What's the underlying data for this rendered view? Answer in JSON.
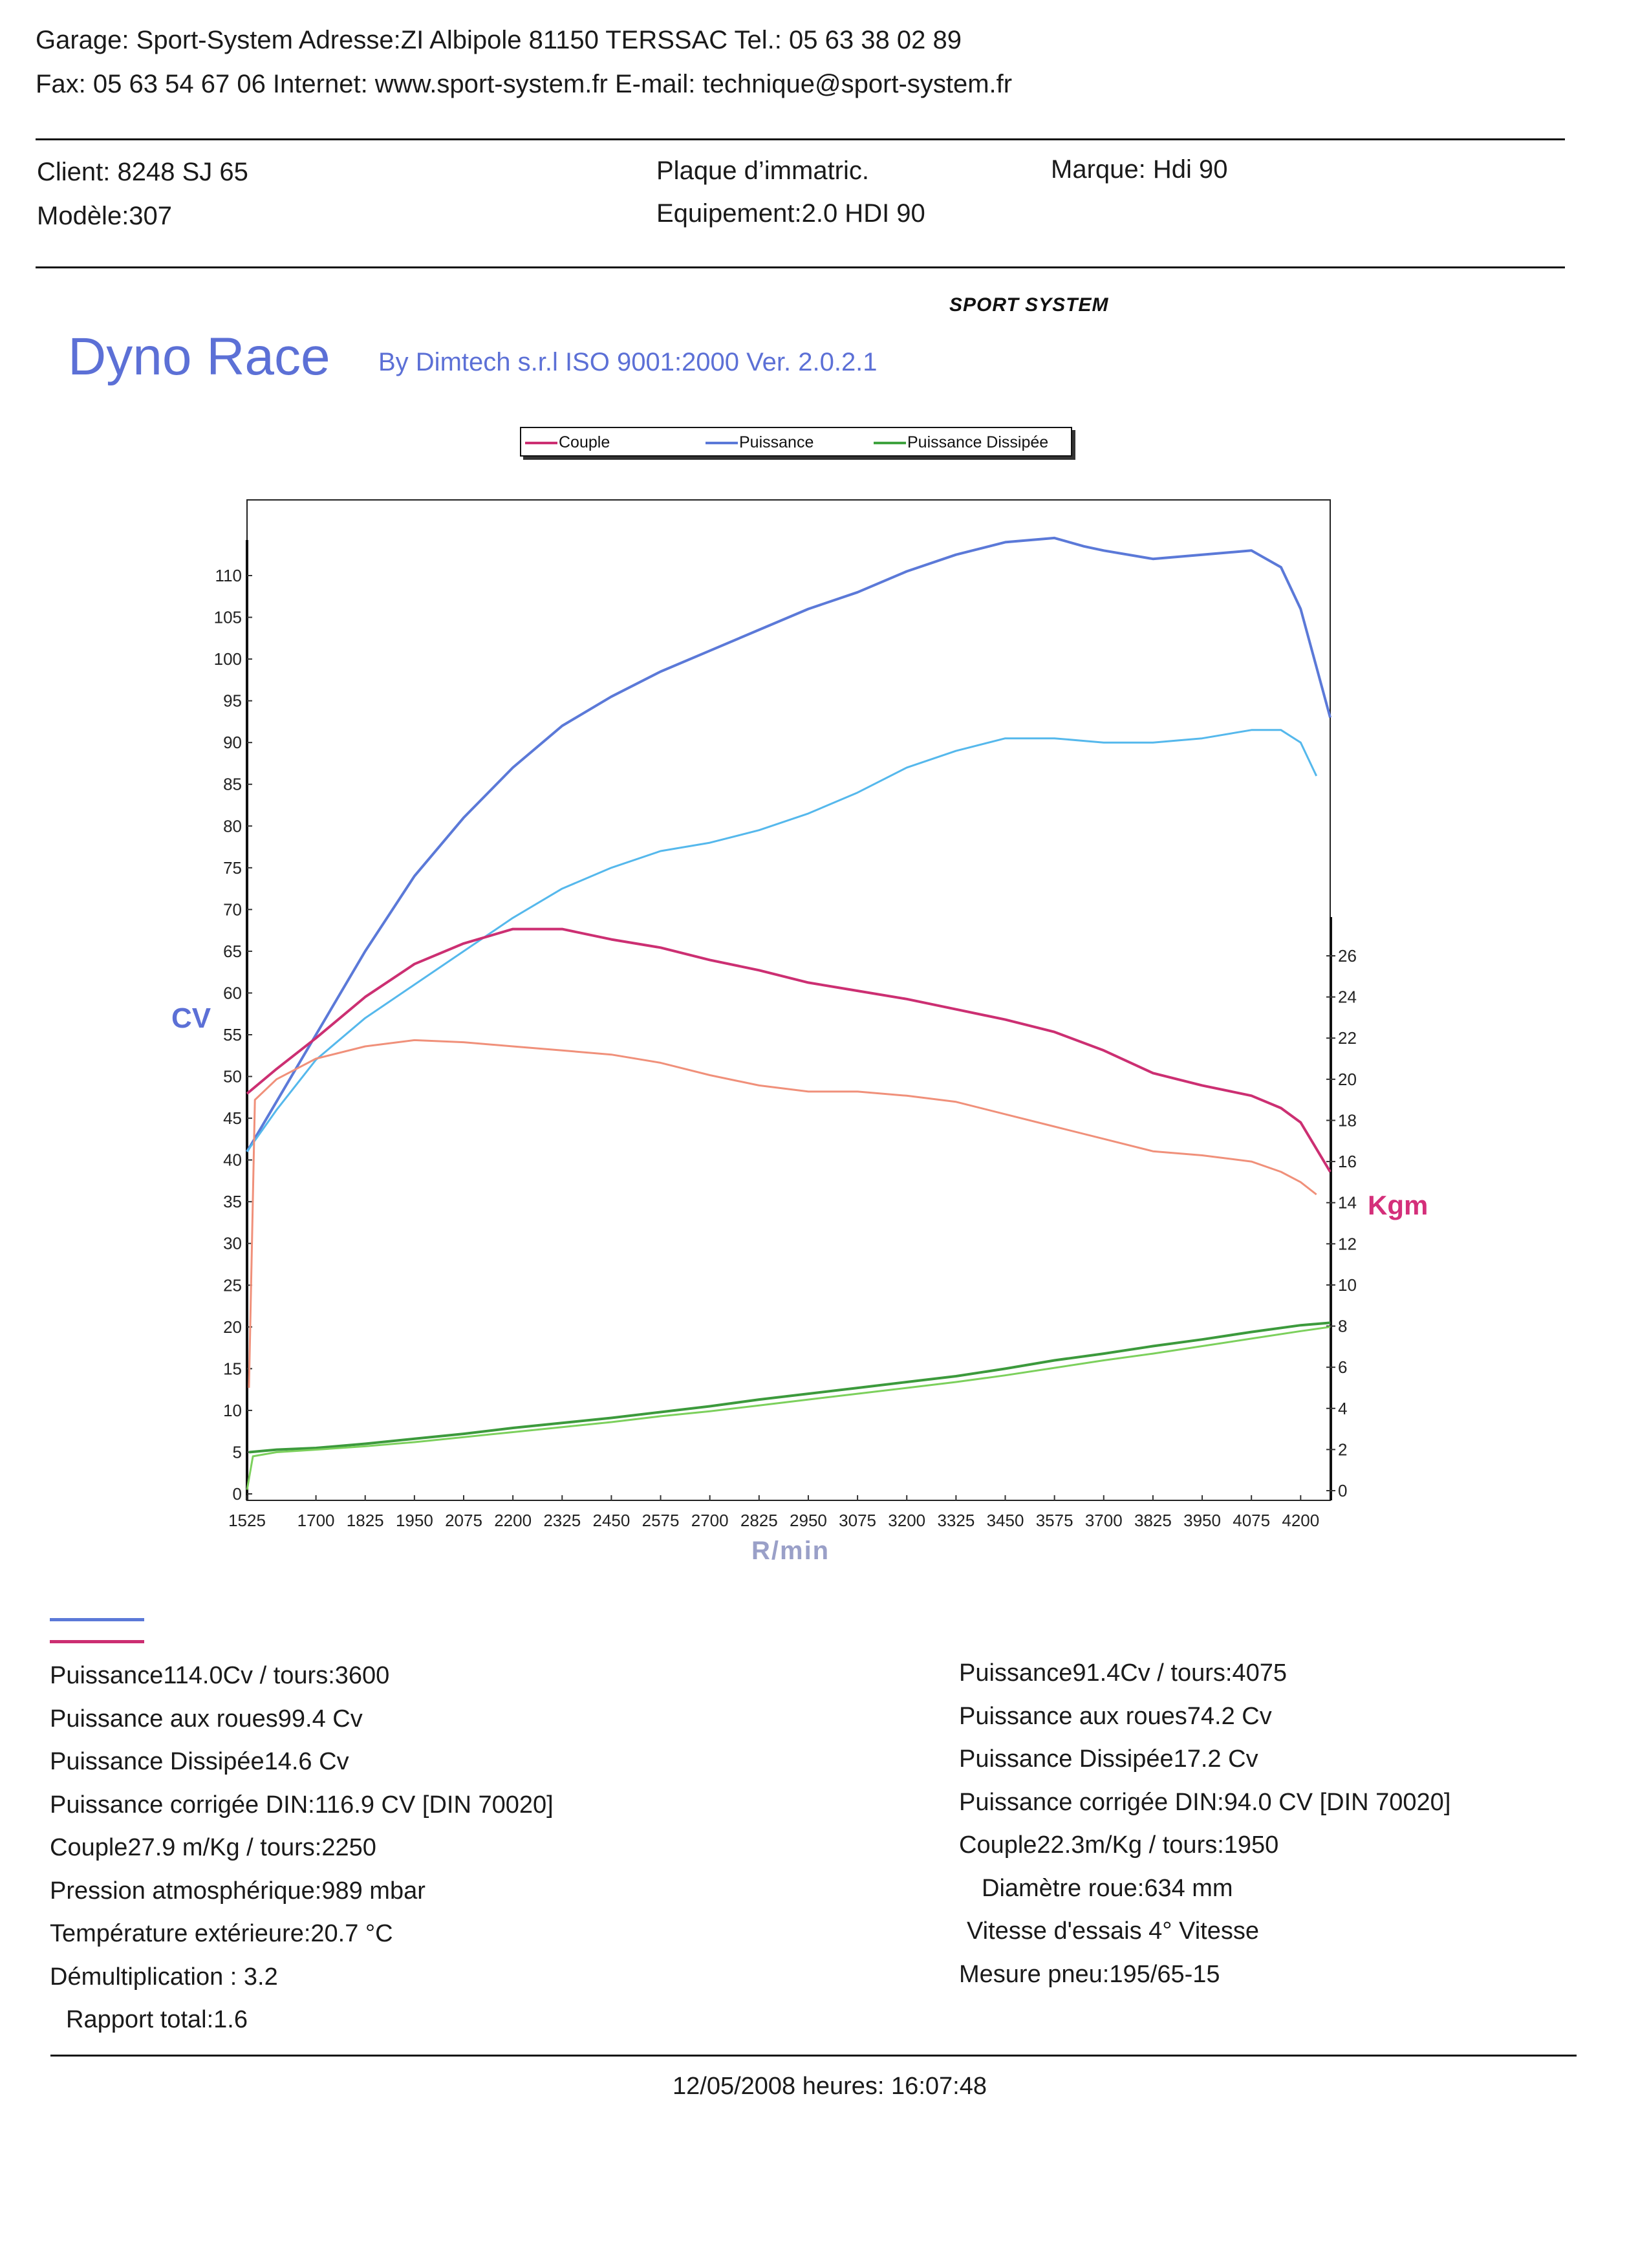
{
  "header": {
    "line1": "Garage: Sport-System   Adresse:ZI Albipole 81150 TERSSAC   Tel.: 05 63 38 02 89",
    "line2": "Fax: 05 63 54 67 06   Internet: www.sport-system.fr   E-mail: technique@sport-system.fr"
  },
  "client": {
    "client": "Client:    8248 SJ 65",
    "model": "Modèle:307",
    "plate": "Plaque d’immatric.",
    "equipment": "Equipement:2.0 HDI 90",
    "brand": "Marque: Hdi 90"
  },
  "logo": "SPORT SYSTEM",
  "app": {
    "title": "Dyno Race",
    "subtitle": "By Dimtech s.r.l  ISO 9001:2000  Ver. 2.0.2.1"
  },
  "legend": [
    {
      "label": "Couple",
      "color": "#cc2f72"
    },
    {
      "label": "Puissance",
      "color": "#5b79d8"
    },
    {
      "label": "Puissance Dissipée",
      "color": "#3fa33f"
    }
  ],
  "colors": {
    "puissance_a": "#5b79d8",
    "puissance_b": "#55b8ec",
    "couple_a": "#cc2f72",
    "couple_b": "#f0907a",
    "dissipee_a": "#3c9a3c",
    "dissipee_b": "#7cd05c"
  },
  "chart_data": {
    "type": "line",
    "xlabel": "R/min",
    "ylabel_left": "CV",
    "ylabel_right": "Kgm",
    "x_ticks": [
      1525,
      1700,
      1825,
      1950,
      2075,
      2200,
      2325,
      2450,
      2575,
      2700,
      2825,
      2950,
      3075,
      3200,
      3325,
      3450,
      3575,
      3700,
      3825,
      3950,
      4075,
      4200
    ],
    "y_left_ticks": [
      0,
      5,
      10,
      15,
      20,
      25,
      30,
      35,
      40,
      45,
      50,
      55,
      60,
      65,
      70,
      75,
      80,
      85,
      90,
      95,
      100,
      105,
      110
    ],
    "y_right_ticks": [
      0,
      2,
      4,
      6,
      8,
      10,
      12,
      14,
      16,
      18,
      20,
      22,
      24,
      26
    ],
    "xlim": [
      1525,
      4275
    ],
    "ylim_left": [
      0,
      120
    ],
    "ylim_right": [
      0,
      28
    ],
    "grid": false,
    "series": [
      {
        "axis": "left",
        "color_key": "puissance_a",
        "x": [
          1525,
          1600,
          1700,
          1825,
          1950,
          2075,
          2200,
          2325,
          2450,
          2575,
          2700,
          2825,
          2950,
          3075,
          3200,
          3325,
          3450,
          3575,
          3650,
          3700,
          3825,
          3950,
          4075,
          4150,
          4200,
          4275
        ],
        "y": [
          41,
          47,
          55,
          65,
          74,
          81,
          87,
          92,
          95.5,
          98.5,
          101,
          103.5,
          106,
          108,
          110.5,
          112.5,
          114,
          114.5,
          113.5,
          113,
          112,
          112.5,
          113,
          111,
          106,
          93
        ]
      },
      {
        "axis": "left",
        "color_key": "puissance_b",
        "x": [
          1525,
          1600,
          1700,
          1825,
          1950,
          2075,
          2200,
          2325,
          2450,
          2575,
          2700,
          2825,
          2950,
          3075,
          3200,
          3325,
          3450,
          3575,
          3700,
          3825,
          3950,
          4075,
          4150,
          4200,
          4240
        ],
        "y": [
          41,
          46,
          52,
          57,
          61,
          65,
          69,
          72.5,
          75,
          77,
          78,
          79.5,
          81.5,
          84,
          87,
          89,
          90.5,
          90.5,
          90,
          90,
          90.5,
          91.5,
          91.5,
          90,
          86
        ]
      },
      {
        "axis": "right",
        "color_key": "couple_a",
        "x": [
          1525,
          1600,
          1700,
          1825,
          1950,
          2075,
          2200,
          2325,
          2450,
          2575,
          2700,
          2825,
          2950,
          3075,
          3200,
          3325,
          3450,
          3575,
          3700,
          3825,
          3950,
          4075,
          4150,
          4200,
          4275
        ],
        "y": [
          19.3,
          20.5,
          22,
          24,
          25.6,
          26.6,
          27.3,
          27.3,
          26.8,
          26.4,
          25.8,
          25.3,
          24.7,
          24.3,
          23.9,
          23.4,
          22.9,
          22.3,
          21.4,
          20.3,
          19.7,
          19.2,
          18.6,
          17.9,
          15.5
        ]
      },
      {
        "axis": "right",
        "color_key": "couple_b",
        "x": [
          1530,
          1545,
          1600,
          1700,
          1825,
          1950,
          2075,
          2200,
          2325,
          2450,
          2575,
          2700,
          2825,
          2950,
          3075,
          3200,
          3325,
          3450,
          3575,
          3700,
          3825,
          3950,
          4075,
          4150,
          4200,
          4240
        ],
        "y": [
          5,
          19,
          20,
          21,
          21.6,
          21.9,
          21.8,
          21.6,
          21.4,
          21.2,
          20.8,
          20.2,
          19.7,
          19.4,
          19.4,
          19.2,
          18.9,
          18.3,
          17.7,
          17.1,
          16.5,
          16.3,
          16,
          15.5,
          15,
          14.4
        ]
      },
      {
        "axis": "left",
        "color_key": "dissipee_a",
        "x": [
          1530,
          1600,
          1700,
          1825,
          1950,
          2075,
          2200,
          2325,
          2450,
          2575,
          2700,
          2825,
          2950,
          3075,
          3200,
          3325,
          3450,
          3575,
          3700,
          3825,
          3950,
          4075,
          4200,
          4275
        ],
        "y": [
          5,
          5.3,
          5.5,
          6,
          6.6,
          7.2,
          7.9,
          8.5,
          9.1,
          9.8,
          10.5,
          11.3,
          12,
          12.7,
          13.4,
          14.1,
          15,
          16,
          16.8,
          17.7,
          18.5,
          19.4,
          20.2,
          20.5
        ]
      },
      {
        "axis": "left",
        "color_key": "dissipee_b",
        "x": [
          1525,
          1540,
          1600,
          1700,
          1825,
          1950,
          2075,
          2200,
          2325,
          2450,
          2575,
          2700,
          2825,
          2950,
          3075,
          3200,
          3325,
          3450,
          3575,
          3700,
          3825,
          3950,
          4075,
          4200,
          4275
        ],
        "y": [
          0.5,
          4.5,
          5,
          5.3,
          5.7,
          6.2,
          6.8,
          7.4,
          8,
          8.6,
          9.3,
          9.9,
          10.6,
          11.3,
          12,
          12.7,
          13.4,
          14.2,
          15.1,
          16,
          16.8,
          17.7,
          18.6,
          19.5,
          20
        ]
      }
    ]
  },
  "stats_left": [
    "Puissance114.0Cv / tours:3600",
    "Puissance aux roues99.4 Cv",
    "Puissance Dissipée14.6 Cv",
    "Puissance corrigée DIN:116.9 CV  [DIN 70020]",
    "Couple27.9 m/Kg / tours:2250",
    "Pression atmosphérique:989 mbar",
    "Température extérieure:20.7 °C",
    "Démultiplication : 3.2",
    "Rapport total:1.6"
  ],
  "stats_right": [
    "Puissance91.4Cv / tours:4075",
    "Puissance aux roues74.2 Cv",
    "Puissance Dissipée17.2 Cv",
    "Puissance corrigée DIN:94.0 CV  [DIN 70020]",
    "Couple22.3m/Kg / tours:1950",
    "Diamètre roue:634 mm",
    "Vitesse d'essais 4° Vitesse",
    "Mesure pneu:195/65-15"
  ],
  "footer": "12/05/2008 heures: 16:07:48"
}
